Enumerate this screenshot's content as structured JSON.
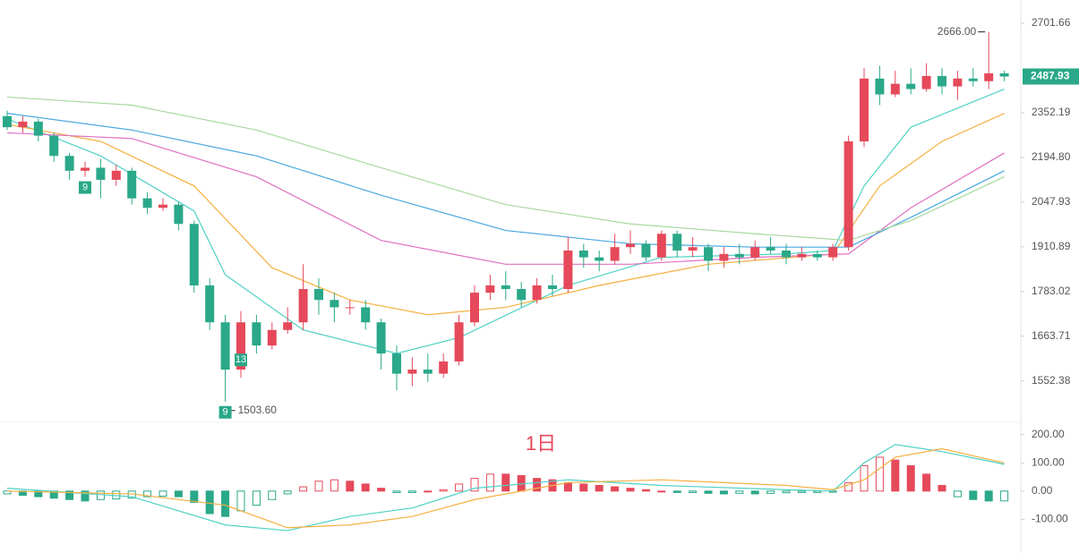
{
  "interval": "1日",
  "chart_data": [
    {
      "type": "candlestick",
      "open": [
        2340,
        2300,
        2320,
        2270,
        2200,
        2150,
        2160,
        2120,
        2150,
        2060,
        2030,
        2040,
        1980,
        1800,
        1700,
        1580,
        1700,
        1640,
        1680,
        1700,
        1790,
        1760,
        1740,
        1740,
        1700,
        1620,
        1570,
        1580,
        1570,
        1600,
        1700,
        1780,
        1800,
        1790,
        1760,
        1800,
        1790,
        1900,
        1880,
        1870,
        1910,
        1920,
        1880,
        1950,
        1900,
        1910,
        1870,
        1890,
        1880,
        1910,
        1900,
        1880,
        1890,
        1880,
        1910,
        2250,
        2480,
        2420,
        2460,
        2440,
        2490,
        2450,
        2480,
        2470,
        2500
      ],
      "high": [
        2360,
        2340,
        2330,
        2280,
        2210,
        2180,
        2190,
        2170,
        2160,
        2080,
        2060,
        2050,
        1990,
        1820,
        1720,
        1730,
        1720,
        1700,
        1740,
        1860,
        1820,
        1780,
        1760,
        1760,
        1710,
        1640,
        1610,
        1620,
        1620,
        1720,
        1800,
        1830,
        1840,
        1810,
        1820,
        1830,
        1940,
        1920,
        1900,
        1950,
        1960,
        1930,
        1960,
        1960,
        1940,
        1920,
        1910,
        1920,
        1930,
        1940,
        1920,
        1910,
        1900,
        1920,
        2270,
        2520,
        2530,
        2510,
        2520,
        2540,
        2520,
        2510,
        2520,
        2666,
        2510
      ],
      "low": [
        2290,
        2280,
        2250,
        2180,
        2120,
        2130,
        2060,
        2100,
        2040,
        2010,
        2020,
        1960,
        1780,
        1680,
        1503.6,
        1560,
        1620,
        1630,
        1670,
        1680,
        1720,
        1700,
        1720,
        1680,
        1580,
        1530,
        1540,
        1550,
        1560,
        1590,
        1690,
        1760,
        1760,
        1740,
        1750,
        1770,
        1780,
        1850,
        1840,
        1860,
        1890,
        1870,
        1870,
        1880,
        1880,
        1840,
        1850,
        1860,
        1870,
        1890,
        1860,
        1870,
        1870,
        1870,
        1900,
        2230,
        2380,
        2410,
        2420,
        2430,
        2420,
        2400,
        2450,
        2440,
        2470
      ],
      "close": [
        2300,
        2320,
        2270,
        2200,
        2150,
        2160,
        2120,
        2150,
        2060,
        2030,
        2040,
        1980,
        1800,
        1700,
        1580,
        1700,
        1640,
        1680,
        1700,
        1790,
        1760,
        1740,
        1740,
        1700,
        1620,
        1570,
        1580,
        1570,
        1600,
        1700,
        1780,
        1800,
        1790,
        1760,
        1800,
        1790,
        1900,
        1880,
        1870,
        1910,
        1920,
        1880,
        1950,
        1900,
        1910,
        1870,
        1890,
        1880,
        1910,
        1900,
        1880,
        1890,
        1880,
        1910,
        2250,
        2480,
        2420,
        2460,
        2440,
        2490,
        2450,
        2480,
        2470,
        2500,
        2487.93
      ],
      "up_color": "#e5495a",
      "down_color": "#2aa889",
      "high_label": "2666.00",
      "low_label": "1503.60",
      "last_label": "2487.93",
      "td_marks": [
        {
          "index": 5,
          "label": "9"
        },
        {
          "index": 14,
          "label": "9"
        },
        {
          "index": 15,
          "label": "13"
        }
      ],
      "series": [
        {
          "color": "#4fd1c5",
          "x": [
            0,
            6,
            12,
            14,
            19,
            25,
            29,
            36,
            42,
            50,
            53,
            55,
            58,
            64
          ],
          "values": [
            2330,
            2200,
            2020,
            1830,
            1680,
            1620,
            1660,
            1800,
            1880,
            1890,
            1900,
            2100,
            2300,
            2440
          ]
        },
        {
          "color": "#f5b041",
          "x": [
            0,
            6,
            12,
            17,
            22,
            27,
            32,
            38,
            45,
            53,
            56,
            60,
            64
          ],
          "values": [
            2310,
            2250,
            2100,
            1850,
            1760,
            1720,
            1740,
            1800,
            1860,
            1890,
            2100,
            2250,
            2350
          ]
        },
        {
          "color": "#e070c0",
          "x": [
            0,
            8,
            16,
            24,
            32,
            40,
            48,
            54,
            58,
            64
          ],
          "values": [
            2280,
            2260,
            2130,
            1930,
            1860,
            1860,
            1880,
            1890,
            2030,
            2210
          ]
        },
        {
          "color": "#4aa8e0",
          "x": [
            0,
            8,
            16,
            24,
            32,
            40,
            48,
            54,
            58,
            64
          ],
          "values": [
            2350,
            2290,
            2200,
            2070,
            1960,
            1920,
            1910,
            1910,
            2000,
            2150
          ]
        },
        {
          "color": "#a8d8a0",
          "x": [
            0,
            8,
            16,
            24,
            32,
            40,
            48,
            54,
            58,
            64
          ],
          "values": [
            2410,
            2380,
            2290,
            2160,
            2040,
            1980,
            1950,
            1930,
            1990,
            2130
          ]
        }
      ],
      "log_scale": true,
      "ylim": [
        1460,
        2801
      ],
      "yticks": [
        2701.66,
        2352.19,
        {
          "value": 2194.8,
          "label": "2194.80"
        },
        2047.93,
        1910.89,
        1783.02,
        1663.71,
        1552.38
      ]
    },
    {
      "type": "macd",
      "histogram": [
        -10,
        -15,
        -20,
        -25,
        -30,
        -35,
        -30,
        -28,
        -25,
        -20,
        -18,
        -20,
        -40,
        -80,
        -90,
        -70,
        -50,
        -30,
        -10,
        15,
        35,
        40,
        35,
        25,
        10,
        -5,
        -5,
        0,
        5,
        25,
        45,
        60,
        60,
        55,
        45,
        40,
        30,
        25,
        20,
        15,
        10,
        5,
        0,
        -5,
        -5,
        -8,
        -10,
        -8,
        -10,
        -8,
        -6,
        -5,
        -5,
        -4,
        30,
        90,
        120,
        110,
        90,
        60,
        20,
        -20,
        -30,
        -35,
        -35
      ],
      "up_color": "#e5495a",
      "down_color": "#2aa889",
      "series": [
        {
          "color": "#4fd1c5",
          "x": [
            0,
            8,
            14,
            18,
            22,
            26,
            30,
            36,
            42,
            50,
            53,
            55,
            57,
            60,
            64
          ],
          "values": [
            10,
            -20,
            -120,
            -140,
            -90,
            -60,
            10,
            40,
            20,
            5,
            0,
            100,
            165,
            140,
            95
          ]
        },
        {
          "color": "#f5b041",
          "x": [
            0,
            8,
            14,
            18,
            22,
            26,
            30,
            36,
            42,
            50,
            53,
            55,
            57,
            60,
            64
          ],
          "values": [
            0,
            -10,
            -50,
            -130,
            -120,
            -90,
            -30,
            30,
            40,
            20,
            5,
            40,
            120,
            150,
            100
          ]
        }
      ],
      "ylim": [
        -210,
        250
      ],
      "yticks": [
        {
          "value": 200,
          "label": "200.00"
        },
        {
          "value": 100,
          "label": "100.00"
        },
        {
          "value": 0,
          "label": "0.00"
        },
        {
          "value": -100,
          "label": "-100.00"
        }
      ]
    }
  ]
}
